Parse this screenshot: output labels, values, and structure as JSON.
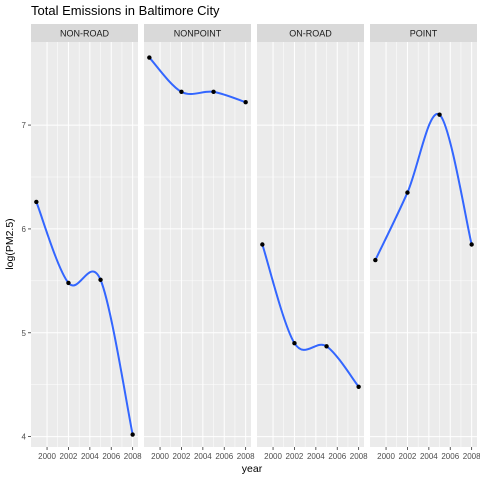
{
  "chart_data": {
    "type": "line",
    "title": "Total Emissions in Baltimore City",
    "xlabel": "year",
    "ylabel": "log(PM2.5)",
    "x": [
      1999,
      2002,
      2005,
      2008
    ],
    "xticks": [
      2000,
      2002,
      2004,
      2006,
      2008
    ],
    "xlim": [
      1998.5,
      2008.5
    ],
    "ylim": [
      3.9,
      7.8
    ],
    "yticks": [
      4,
      5,
      6,
      7
    ],
    "grid": true,
    "smooth": true,
    "panels": [
      {
        "label": "NON-ROAD",
        "values": [
          6.26,
          5.48,
          5.51,
          4.02
        ]
      },
      {
        "label": "NONPOINT",
        "values": [
          7.65,
          7.32,
          7.32,
          7.22
        ]
      },
      {
        "label": "ON-ROAD",
        "values": [
          5.85,
          4.9,
          4.87,
          4.48
        ]
      },
      {
        "label": "POINT",
        "values": [
          5.7,
          6.35,
          7.1,
          5.85
        ]
      }
    ],
    "colors": {
      "line": "#3366FF",
      "point": "#000000",
      "panel_bg": "#EBEBEB",
      "strip_bg": "#D9D9D9",
      "grid_major": "#FFFFFF"
    }
  }
}
